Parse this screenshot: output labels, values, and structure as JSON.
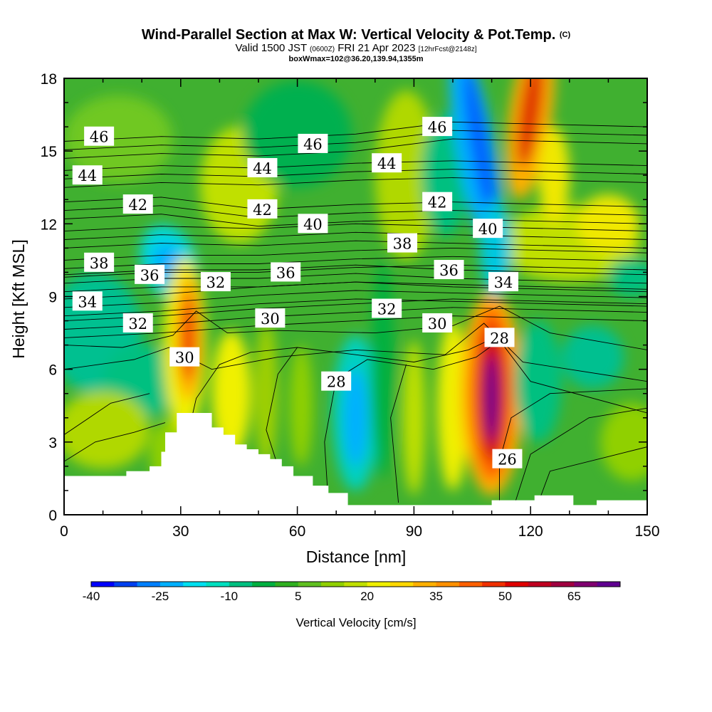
{
  "title": {
    "main": "Wind-Parallel Section at Max W: Vertical Velocity & Pot.Temp.",
    "copyright": "(C)",
    "valid_prefix": "Valid 1500 JST",
    "valid_utc": "(0600Z)",
    "valid_date": "FRI 21 Apr 2023",
    "forecast": "[12hrFcst@2148z]",
    "box_info": "boxWmax=102@36.20,139.94,1355m"
  },
  "chart_data": {
    "type": "heatmap",
    "xlabel": "Distance [nm]",
    "ylabel": "Height [Kft MSL]",
    "xlim": [
      0,
      150
    ],
    "ylim": [
      0,
      18
    ],
    "x_ticks": [
      0,
      30,
      60,
      90,
      120,
      150
    ],
    "y_ticks": [
      0,
      3,
      6,
      9,
      12,
      15,
      18
    ],
    "colorbar": {
      "label": "Vertical Velocity [cm/s]",
      "min": -40,
      "step": 5,
      "tick_labels": [
        "-40",
        "-25",
        "-10",
        "5",
        "20",
        "35",
        "50",
        "65"
      ],
      "colors": [
        "#0000ff",
        "#0040f0",
        "#0080ff",
        "#00b0ff",
        "#00e0f0",
        "#00e0c0",
        "#00c080",
        "#00b040",
        "#30b020",
        "#60c020",
        "#90d000",
        "#c0e000",
        "#f0f000",
        "#ffd800",
        "#ffb000",
        "#ff9000",
        "#ff6000",
        "#f03000",
        "#e00000",
        "#c00020",
        "#a00040",
        "#800070",
        "#600090"
      ]
    },
    "theta_contours_K": [
      26,
      28,
      30,
      32,
      34,
      36,
      38,
      40,
      42,
      44,
      46
    ],
    "contour_labels": [
      {
        "text": "46",
        "x": 9,
        "y": 15.6
      },
      {
        "text": "46",
        "x": 64,
        "y": 15.3
      },
      {
        "text": "46",
        "x": 96,
        "y": 16.0
      },
      {
        "text": "44",
        "x": 6,
        "y": 14.0
      },
      {
        "text": "44",
        "x": 51,
        "y": 14.3
      },
      {
        "text": "44",
        "x": 83,
        "y": 14.5
      },
      {
        "text": "42",
        "x": 19,
        "y": 12.8
      },
      {
        "text": "42",
        "x": 51,
        "y": 12.6
      },
      {
        "text": "42",
        "x": 96,
        "y": 12.9
      },
      {
        "text": "40",
        "x": 64,
        "y": 12.0
      },
      {
        "text": "40",
        "x": 109,
        "y": 11.8
      },
      {
        "text": "38",
        "x": 9,
        "y": 10.4
      },
      {
        "text": "38",
        "x": 87,
        "y": 11.2
      },
      {
        "text": "36",
        "x": 22,
        "y": 9.9
      },
      {
        "text": "36",
        "x": 57,
        "y": 10.0
      },
      {
        "text": "36",
        "x": 99,
        "y": 10.1
      },
      {
        "text": "34",
        "x": 6,
        "y": 8.8
      },
      {
        "text": "34",
        "x": 113,
        "y": 9.6
      },
      {
        "text": "32",
        "x": 39,
        "y": 9.6
      },
      {
        "text": "32",
        "x": 19,
        "y": 7.9
      },
      {
        "text": "32",
        "x": 83,
        "y": 8.5
      },
      {
        "text": "30",
        "x": 53,
        "y": 8.1
      },
      {
        "text": "30",
        "x": 96,
        "y": 7.9
      },
      {
        "text": "30",
        "x": 31,
        "y": 6.5
      },
      {
        "text": "28",
        "x": 112,
        "y": 7.3
      },
      {
        "text": "28",
        "x": 70,
        "y": 5.5
      },
      {
        "text": "26",
        "x": 114,
        "y": 2.3
      }
    ],
    "velocity_features": [
      {
        "kind": "updraft",
        "x": 110,
        "y": 5.0,
        "peak_cm_s": 75
      },
      {
        "kind": "updraft",
        "x": 32,
        "y": 7.5,
        "peak_cm_s": 45
      },
      {
        "kind": "updraft",
        "x": 43,
        "y": 5.0,
        "peak_cm_s": 25
      },
      {
        "kind": "updraft",
        "x": 119,
        "y": 16.5,
        "peak_cm_s": 45
      },
      {
        "kind": "downdraft",
        "x": 108,
        "y": 15.0,
        "peak_cm_s": -25
      },
      {
        "kind": "downdraft",
        "x": 27,
        "y": 10.3,
        "peak_cm_s": -25
      },
      {
        "kind": "downdraft",
        "x": 75,
        "y": 4.0,
        "peak_cm_s": -20
      }
    ]
  }
}
